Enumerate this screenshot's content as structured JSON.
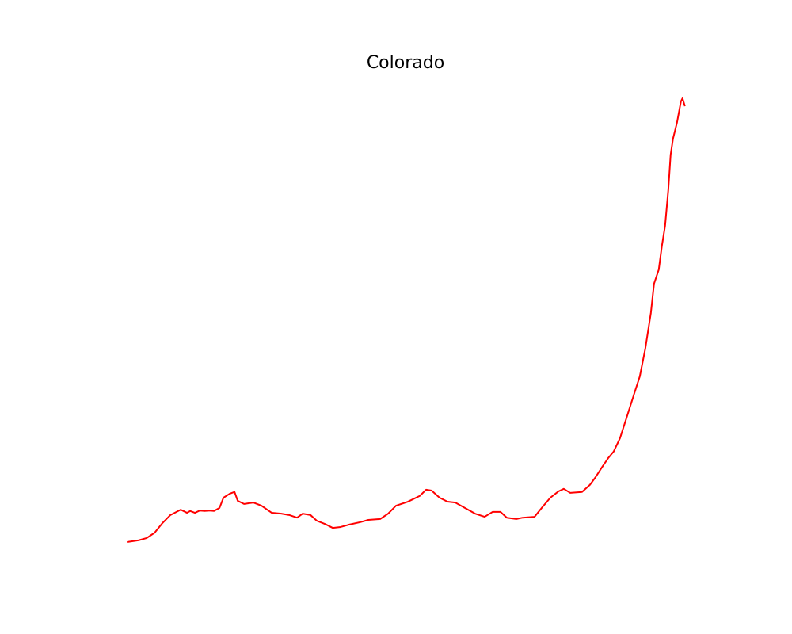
{
  "chart_data": {
    "type": "line",
    "title": "Colorado",
    "color": "#ff0000",
    "x": [
      0,
      15,
      25,
      35,
      45,
      55,
      68,
      76,
      80,
      86,
      92,
      98,
      105,
      110,
      117,
      122,
      130,
      136,
      140,
      148,
      160,
      170,
      183,
      195,
      205,
      215,
      222,
      232,
      240,
      250,
      260,
      270,
      280,
      295,
      305,
      320,
      330,
      340,
      355,
      370,
      378,
      385,
      395,
      405,
      415,
      425,
      440,
      452,
      462,
      472,
      480,
      492,
      500,
      515,
      525,
      535,
      545,
      552,
      560,
      575,
      585,
      592,
      600,
      608,
      615,
      623,
      632,
      640,
      648,
      655,
      662,
      666,
      672,
      676,
      680,
      684,
      687,
      690,
      695,
      700,
      702,
      705
    ],
    "values": [
      0,
      0.4,
      0.9,
      2.1,
      4.3,
      6.1,
      7.3,
      6.6,
      7.0,
      6.6,
      7.1,
      7.0,
      7.1,
      7.0,
      7.7,
      10.0,
      10.9,
      11.3,
      9.3,
      8.6,
      8.9,
      8.2,
      6.6,
      6.4,
      6.1,
      5.5,
      6.4,
      6.1,
      4.8,
      4.1,
      3.2,
      3.4,
      3.9,
      4.5,
      5.0,
      5.2,
      6.4,
      8.2,
      9.1,
      10.4,
      11.8,
      11.6,
      10.0,
      9.1,
      8.9,
      7.9,
      6.4,
      5.7,
      6.8,
      6.8,
      5.5,
      5.2,
      5.5,
      5.7,
      7.9,
      10.0,
      11.4,
      12.0,
      11.1,
      11.3,
      12.9,
      14.6,
      16.8,
      18.9,
      20.4,
      23.4,
      28.4,
      32.9,
      37.3,
      43.6,
      51.6,
      58.2,
      61.4,
      66.8,
      71.3,
      79.3,
      87.3,
      90.9,
      94.5,
      99.3,
      100,
      98.2
    ]
  }
}
